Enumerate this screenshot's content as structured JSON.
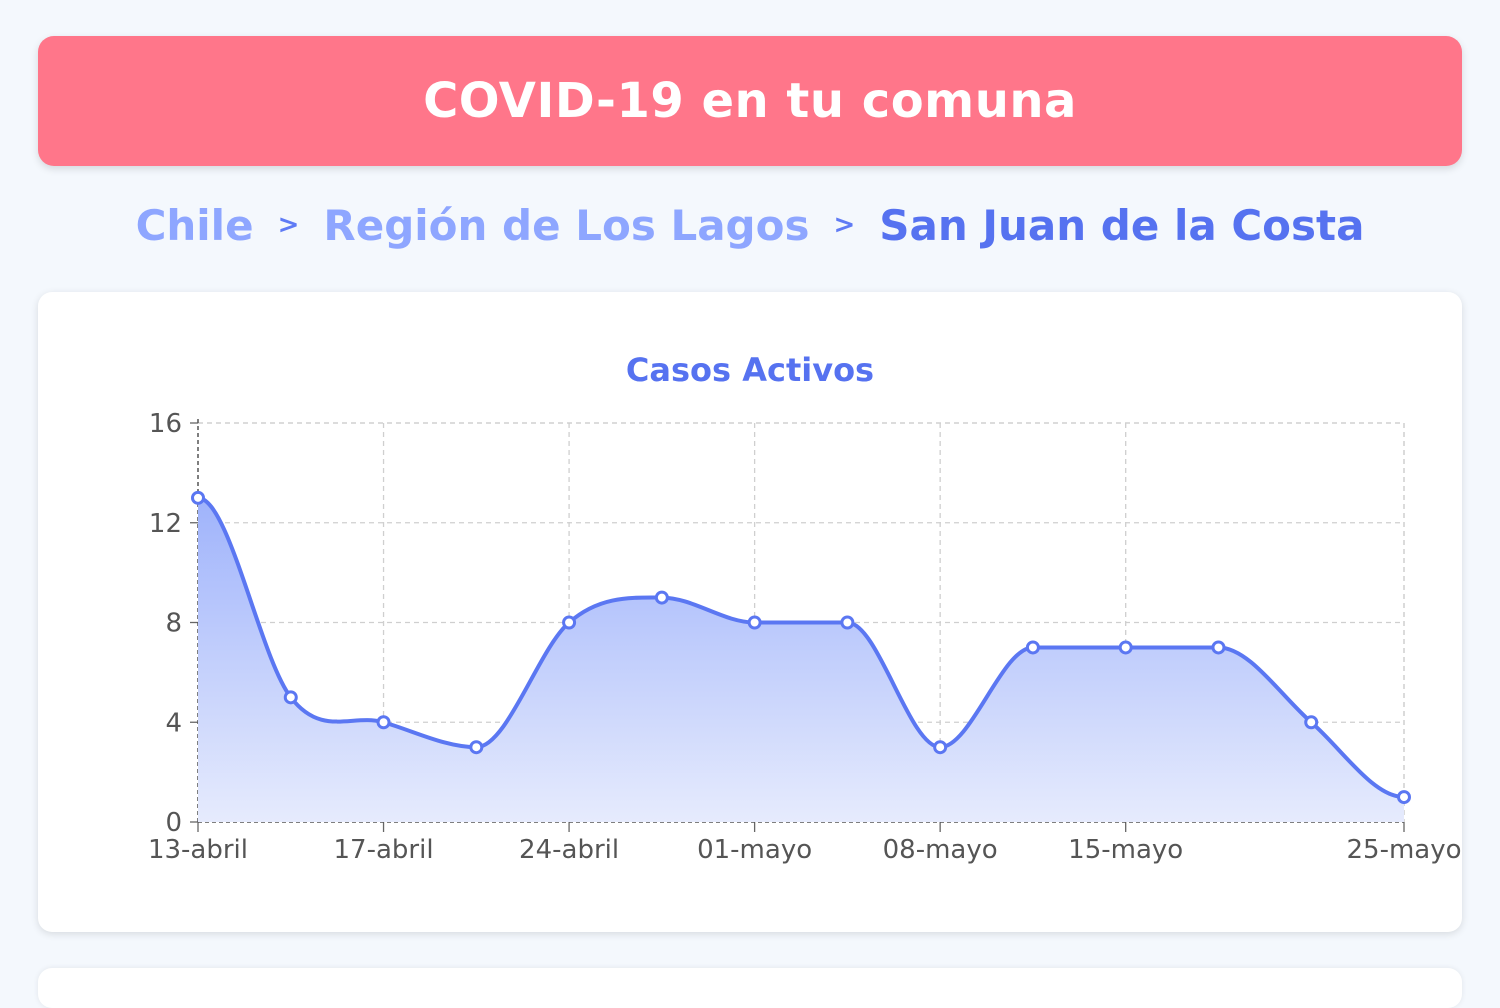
{
  "header": {
    "title": "COVID-19 en tu comuna"
  },
  "breadcrumb": {
    "items": [
      "Chile",
      "Región de Los Lagos",
      "San Juan de la Costa"
    ],
    "separator": ">"
  },
  "colors": {
    "header_bg": "#ff768a",
    "accent": "#5672f0",
    "crumb_inactive": "#8ea6ff",
    "line": "#5b77f2",
    "area_top": "#9fb3fb",
    "area_bottom": "#e6ebfd"
  },
  "chart_data": {
    "type": "area",
    "title": "Casos Activos",
    "xlabel": "",
    "ylabel": "",
    "x": [
      "13-abril",
      "15-abril",
      "17-abril",
      "20-abril",
      "24-abril",
      "27-abril",
      "01-mayo",
      "04-mayo",
      "08-mayo",
      "11-mayo",
      "15-mayo",
      "18-mayo",
      "22-mayo",
      "25-mayo"
    ],
    "x_ticks": [
      "13-abril",
      "17-abril",
      "24-abril",
      "01-mayo",
      "08-mayo",
      "15-mayo",
      "25-mayo"
    ],
    "series": [
      {
        "values": [
          13,
          5,
          4,
          3,
          8,
          9,
          8,
          8,
          3,
          7,
          7,
          7,
          4,
          1
        ]
      }
    ],
    "y_ticks": [
      0,
      4,
      8,
      12,
      16
    ],
    "ylim": [
      0,
      16
    ],
    "grid": true,
    "legend": "none"
  }
}
